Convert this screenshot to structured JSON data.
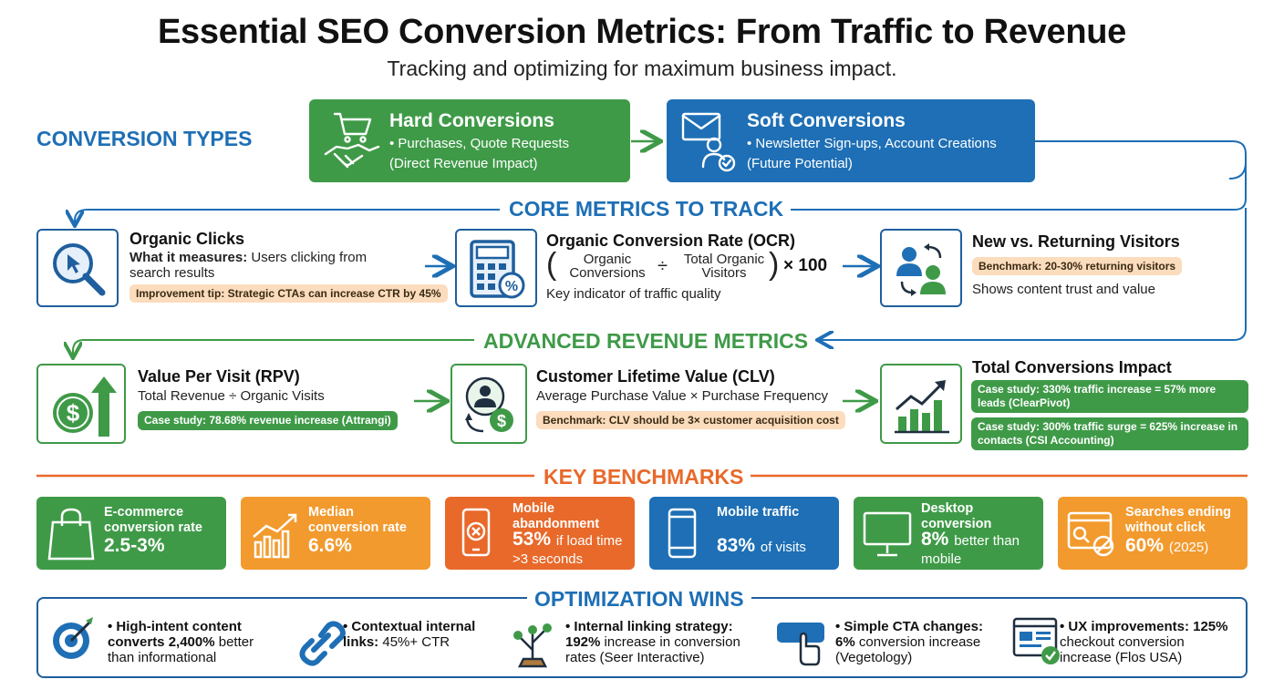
{
  "header": {
    "title": "Essential SEO Conversion Metrics: From Traffic to Revenue",
    "subtitle": "Tracking and optimizing for maximum business impact."
  },
  "sections": {
    "conversion_types": "CONVERSION TYPES",
    "core_metrics": "CORE METRICS TO TRACK",
    "advanced_metrics": "ADVANCED REVENUE METRICS",
    "key_benchmarks": "KEY BENCHMARKS",
    "optimization_wins": "OPTIMIZATION WINS"
  },
  "conversion_types": {
    "hard": {
      "title": "Hard Conversions",
      "line1": "• Purchases, Quote Requests",
      "line2": "(Direct Revenue Impact)",
      "icon": "cart-handshake-icon",
      "color": "#3f9a48"
    },
    "soft": {
      "title": "Soft Conversions",
      "line1": "• Newsletter Sign-ups, Account Creations",
      "line2": "(Future Potential)",
      "icon": "envelope-user-icon",
      "color": "#1e6fb5"
    }
  },
  "core_metrics": {
    "organic_clicks": {
      "title": "Organic Clicks",
      "measures_label": "What it measures:",
      "measures_text": "Users clicking from",
      "measures_text2": "search results",
      "tip": "Improvement tip: Strategic CTAs can increase CTR by 45%",
      "icon": "magnifier-cursor-icon"
    },
    "ocr": {
      "title": "Organic Conversion Rate (OCR)",
      "numerator_line1": "Organic",
      "numerator_line2": "Conversions",
      "operator": "÷",
      "denominator_line1": "Total Organic",
      "denominator_line2": "Visitors",
      "multiplier": "× 100",
      "note": "Key indicator of traffic quality",
      "icon": "calculator-percent-icon"
    },
    "visitors": {
      "title": "New vs. Returning Visitors",
      "benchmark": "Benchmark: 20-30% returning visitors",
      "note": "Shows content trust and value",
      "icon": "users-cycle-icon"
    }
  },
  "advanced_metrics": {
    "rpv": {
      "title": "Value Per Visit (RPV)",
      "formula": "Total Revenue ÷ Organic Visits",
      "case": "Case study: 78.68% revenue increase (Attrangi)",
      "icon": "dollar-arrow-icon"
    },
    "clv": {
      "title": "Customer Lifetime Value (CLV)",
      "formula": "Average Purchase Value × Purchase Frequency",
      "benchmark": "Benchmark: CLV should be 3× customer acquisition cost",
      "icon": "user-dollar-icon"
    },
    "total": {
      "title": "Total Conversions Impact",
      "case1": "Case study: 330% traffic increase = 57% more leads (ClearPivot)",
      "case2": "Case study: 300% traffic surge = 625% increase in contacts (CSI Accounting)",
      "icon": "bar-chart-growth-icon"
    }
  },
  "benchmarks": [
    {
      "label": "E-commerce conversion rate",
      "value": "2.5-3%",
      "note": "",
      "color": "#3f9a48",
      "icon": "shopping-bag-icon"
    },
    {
      "label": "Median conversion rate",
      "value": "6.6%",
      "note": "",
      "color": "#f29a2e",
      "icon": "growth-chart-icon"
    },
    {
      "label": "Mobile abandonment",
      "value": "53%",
      "note": "if load time >3 seconds",
      "color": "#e8692a",
      "icon": "mobile-x-icon"
    },
    {
      "label": "Mobile traffic",
      "value": "83%",
      "note": "of visits",
      "color": "#1e6fb5",
      "icon": "mobile-icon"
    },
    {
      "label": "Desktop conversion",
      "value": "8%",
      "note": "better than mobile",
      "color": "#3f9a48",
      "icon": "desktop-icon"
    },
    {
      "label": "Searches ending without click",
      "value": "60%",
      "note": "(2025)",
      "color": "#f29a2e",
      "icon": "search-block-icon"
    }
  ],
  "wins": [
    {
      "bold": "• High-intent content converts 2,400%",
      "text": "better than informational",
      "icon": "target-icon"
    },
    {
      "bold": "• Contextual internal links:",
      "text": "45%+ CTR",
      "icon": "link-icon"
    },
    {
      "bold": "• Internal linking strategy: 192%",
      "text": "increase in conversion rates (Seer Interactive)",
      "icon": "plant-network-icon"
    },
    {
      "bold": "• Simple CTA changes: 6%",
      "text": "conversion increase (Vegetology)",
      "icon": "cta-click-icon"
    },
    {
      "bold": "• UX improvements: 125%",
      "text": "checkout conversion increase (Flos USA)",
      "icon": "browser-check-icon"
    }
  ]
}
